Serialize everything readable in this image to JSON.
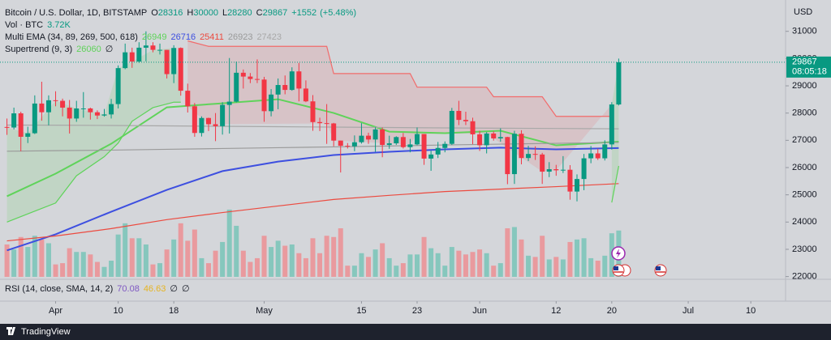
{
  "chart_data": {
    "type": "candlestick",
    "title": "Bitcoin / U.S. Dollar, 1D, BITSTAMP",
    "ohlc_legend": [
      {
        "label": "O",
        "value": 28316
      },
      {
        "label": "H",
        "value": 30000
      },
      {
        "label": "L",
        "value": 28280
      },
      {
        "label": "C",
        "value": 29867
      }
    ],
    "change": {
      "value": 1552,
      "label": "+1552"
    },
    "change_percent": {
      "value": 5.48,
      "label": "(+5.48%)"
    },
    "currency": "USD",
    "countdown": "08:05:18",
    "up_color": "#089981",
    "down_color": "#f23645",
    "x": [
      "Mar 25",
      "Mar 26",
      "Mar 27",
      "Mar 28",
      "Mar 29",
      "Mar 30",
      "Mar 31",
      "Apr 1",
      "Apr 2",
      "Apr 3",
      "Apr 4",
      "Apr 5",
      "Apr 6",
      "Apr 7",
      "Apr 8",
      "Apr 9",
      "Apr 10",
      "Apr 11",
      "Apr 12",
      "Apr 13",
      "Apr 14",
      "Apr 15",
      "Apr 16",
      "Apr 17",
      "Apr 18",
      "Apr 19",
      "Apr 20",
      "Apr 21",
      "Apr 22",
      "Apr 23",
      "Apr 24",
      "Apr 25",
      "Apr 26",
      "Apr 27",
      "Apr 28",
      "Apr 29",
      "Apr 30",
      "May 1",
      "May 2",
      "May 3",
      "May 4",
      "May 5",
      "May 6",
      "May 7",
      "May 8",
      "May 9",
      "May 10",
      "May 11",
      "May 12",
      "May 13",
      "May 14",
      "May 15",
      "May 16",
      "May 17",
      "May 18",
      "May 19",
      "May 20",
      "May 21",
      "May 22",
      "May 23",
      "May 24",
      "May 25",
      "May 26",
      "May 27",
      "May 28",
      "May 29",
      "May 30",
      "May 31",
      "Jun 1",
      "Jun 2",
      "Jun 3",
      "Jun 4",
      "Jun 5",
      "Jun 6",
      "Jun 7",
      "Jun 8",
      "Jun 9",
      "Jun 10",
      "Jun 11",
      "Jun 12",
      "Jun 13",
      "Jun 14",
      "Jun 15",
      "Jun 16",
      "Jun 17",
      "Jun 18",
      "Jun 19",
      "Jun 20",
      "Jun 21"
    ],
    "open": [
      27490,
      27470,
      27990,
      27130,
      27260,
      28350,
      28030,
      28470,
      28450,
      28200,
      27800,
      28170,
      28170,
      28030,
      27910,
      27950,
      28330,
      29650,
      30230,
      29890,
      30400,
      30480,
      30320,
      30320,
      29430,
      30390,
      28820,
      28250,
      27270,
      27820,
      27590,
      27520,
      28300,
      28420,
      29480,
      29340,
      29250,
      29230,
      28070,
      28680,
      29030,
      28850,
      29530,
      28900,
      28430,
      27670,
      27630,
      27620,
      26990,
      26800,
      26780,
      26930,
      27170,
      27030,
      27400,
      26830,
      26890,
      27120,
      26750,
      26850,
      27230,
      26330,
      26480,
      26720,
      26870,
      28080,
      27750,
      27700,
      27220,
      26820,
      27250,
      27070,
      27120,
      25760,
      27240,
      26350,
      26500,
      26480,
      25850,
      25940,
      25900,
      25920,
      25120,
      25580,
      26340,
      26520,
      26340,
      26850,
      28316
    ],
    "high": [
      27800,
      28200,
      28050,
      27500,
      28650,
      29150,
      28650,
      28800,
      28530,
      28480,
      28450,
      28770,
      28200,
      28100,
      28150,
      28520,
      29750,
      30550,
      30400,
      30600,
      31000,
      30600,
      30550,
      30320,
      30490,
      30410,
      29080,
      28370,
      27880,
      27830,
      28000,
      28400,
      30020,
      29890,
      29600,
      29470,
      29970,
      29330,
      28880,
      29270,
      29380,
      29680,
      29840,
      29200,
      28660,
      27830,
      28330,
      27640,
      26990,
      26900,
      27180,
      27630,
      27280,
      27480,
      27470,
      27170,
      27150,
      27270,
      27050,
      27470,
      27230,
      26620,
      26940,
      26960,
      28190,
      28450,
      28050,
      27830,
      27350,
      27300,
      27330,
      27440,
      27130,
      27350,
      27370,
      26800,
      26780,
      26540,
      26200,
      26100,
      26420,
      26090,
      25750,
      26500,
      26790,
      26690,
      27000,
      28400,
      30000
    ],
    "low": [
      27200,
      27400,
      26600,
      26900,
      27230,
      27720,
      27550,
      28250,
      27880,
      27250,
      27680,
      27830,
      27760,
      27780,
      27870,
      27800,
      28170,
      29610,
      29660,
      29840,
      29900,
      30230,
      30150,
      29270,
      29100,
      28640,
      28020,
      27130,
      27140,
      27340,
      26970,
      27210,
      27250,
      28390,
      28900,
      29100,
      29100,
      27680,
      27880,
      28140,
      28690,
      28820,
      28430,
      28400,
      27350,
      27340,
      26870,
      26780,
      25820,
      26700,
      26600,
      26880,
      26870,
      26580,
      26380,
      26690,
      26830,
      26700,
      26560,
      26820,
      26100,
      25880,
      26350,
      26560,
      26830,
      27560,
      27560,
      26860,
      26610,
      26520,
      26990,
      26950,
      25390,
      25400,
      26120,
      26240,
      26280,
      25400,
      25650,
      25700,
      25800,
      24820,
      24760,
      25170,
      26160,
      26280,
      26260,
      26660,
      28280
    ],
    "close": [
      27470,
      27990,
      27130,
      27260,
      28350,
      28030,
      28470,
      28450,
      28200,
      27800,
      28170,
      28170,
      28030,
      27910,
      27950,
      28330,
      29650,
      30230,
      29890,
      30400,
      30480,
      30320,
      30320,
      29430,
      30390,
      28820,
      28250,
      27270,
      27820,
      27590,
      27520,
      28300,
      28420,
      29480,
      29340,
      29250,
      29230,
      28070,
      28680,
      29030,
      28850,
      29530,
      28900,
      28430,
      27670,
      27630,
      27620,
      26990,
      26800,
      26780,
      26930,
      27170,
      27030,
      27400,
      26830,
      26890,
      27120,
      26750,
      26850,
      27230,
      26330,
      26480,
      26720,
      26870,
      28080,
      27750,
      27700,
      27220,
      26820,
      27250,
      27070,
      27120,
      25760,
      27240,
      26350,
      26500,
      26480,
      25850,
      25940,
      25900,
      25920,
      25120,
      25580,
      26340,
      26520,
      26340,
      26850,
      28316,
      29867
    ],
    "volume": {
      "name": "Vol · BTC",
      "last_label": "3.72K",
      "values": [
        2600,
        2200,
        3200,
        2400,
        3300,
        3000,
        2700,
        1000,
        1100,
        2300,
        2000,
        2000,
        1800,
        1200,
        800,
        1300,
        3400,
        4300,
        3100,
        3100,
        2600,
        1000,
        1100,
        2200,
        3000,
        4300,
        2900,
        3800,
        1500,
        1100,
        2100,
        2800,
        5400,
        4100,
        2100,
        1200,
        1500,
        3300,
        2400,
        2900,
        2500,
        2600,
        1900,
        1500,
        3100,
        1900,
        3300,
        3200,
        3900,
        900,
        900,
        1900,
        1600,
        2200,
        2700,
        1500,
        900,
        1100,
        1800,
        1800,
        3200,
        2300,
        1900,
        900,
        2400,
        2100,
        1800,
        2000,
        2200,
        1900,
        900,
        1100,
        3900,
        4000,
        3000,
        1700,
        1600,
        3300,
        1400,
        1600,
        1400,
        2800,
        3000,
        3100,
        1500,
        1300,
        1700,
        3500,
        3720
      ],
      "up_color": "#86c7bd",
      "down_color": "#e99a9e"
    },
    "ema": {
      "name": "Multi EMA (34, 89, 269, 500, 618)",
      "x": [
        "Mar 25",
        "Apr 1",
        "Apr 9",
        "Apr 17",
        "Apr 25",
        "May 3",
        "May 11",
        "May 19",
        "May 27",
        "Jun 4",
        "Jun 12",
        "Jun 21"
      ],
      "series": [
        {
          "color": "#5fd35a",
          "values": [
            24947,
            25777,
            26875,
            28211,
            28360,
            28508,
            28003,
            27320,
            27261,
            27350,
            26816,
            26949
          ]
        },
        {
          "color": "#3d4fe0",
          "values": [
            22960,
            23550,
            24380,
            25180,
            25870,
            26220,
            26460,
            26580,
            26670,
            26730,
            26670,
            26716
          ]
        },
        {
          "color": "#ec4a3f",
          "values": [
            23310,
            23490,
            23760,
            24090,
            24350,
            24590,
            24830,
            24980,
            25120,
            25210,
            25300,
            25411
          ]
        },
        {
          "color": "#9a9a9a",
          "values": [
            26600,
            26620,
            26640,
            26670,
            26700,
            26730,
            26760,
            26790,
            26830,
            26860,
            26890,
            26923
          ]
        },
        {
          "color": "#a8a8a8",
          "values": [
            27560,
            27555,
            27545,
            27530,
            27515,
            27500,
            27485,
            27470,
            27455,
            27445,
            27435,
            27423
          ]
        }
      ]
    },
    "supertrend": {
      "name": "Supertrend (9, 3)",
      "na_symbol": "∅",
      "series": [
        {
          "color": "#5fd35a",
          "fill": "rgba(95,211,90,0.16)",
          "x": [
            "Mar 25",
            "Mar 28",
            "Apr 1",
            "Apr 4",
            "Apr 8",
            "Apr 10",
            "Apr 12",
            "Apr 15",
            "Apr 18",
            "Apr 19",
            "Apr 20",
            "Jun 20",
            "Jun 21"
          ],
          "values": [
            24000,
            24300,
            24700,
            25700,
            26400,
            26900,
            27700,
            28200,
            28400,
            28400,
            null,
            24720,
            26060
          ]
        },
        {
          "color": "#f26b6b",
          "fill": "rgba(242,54,69,0.12)",
          "x": [
            "Apr 20",
            "Apr 23",
            "May 10",
            "May 11",
            "May 22",
            "May 23",
            "Jun 2",
            "Jun 3",
            "Jun 10",
            "Jun 12",
            "Jun 20"
          ],
          "values": [
            30650,
            30450,
            30450,
            29450,
            29450,
            28950,
            28950,
            28600,
            28600,
            27880,
            27880
          ]
        }
      ]
    },
    "rsi": {
      "name": "RSI (14, close, SMA, 14, 2)",
      "na_symbol": "∅",
      "rsi": {
        "value": 70.08,
        "color": "#7e57c2"
      },
      "sma": {
        "value": 46.63,
        "color": "#e6b422"
      }
    },
    "ylim": [
      21900,
      32150
    ],
    "yticks": [
      31000,
      30000,
      29000,
      28000,
      27000,
      26000,
      25000,
      24000,
      23000,
      22000
    ],
    "xlim": [
      "Mar 24",
      "Jul 15"
    ],
    "xticks": [
      {
        "value": "Apr 1",
        "label": "Apr"
      },
      {
        "value": "Apr 10",
        "label": "10"
      },
      {
        "value": "Apr 18",
        "label": "18"
      },
      {
        "value": "May 1",
        "label": "May"
      },
      {
        "value": "May 15",
        "label": "15"
      },
      {
        "value": "May 23",
        "label": "23"
      },
      {
        "value": "Jun 1",
        "label": "Jun"
      },
      {
        "value": "Jun 12",
        "label": "12"
      },
      {
        "value": "Jun 20",
        "label": "20"
      },
      {
        "value": "Jul 1",
        "label": "Jul"
      },
      {
        "value": "Jul 10",
        "label": "10"
      }
    ],
    "grid": false,
    "brand": "TradingView"
  }
}
